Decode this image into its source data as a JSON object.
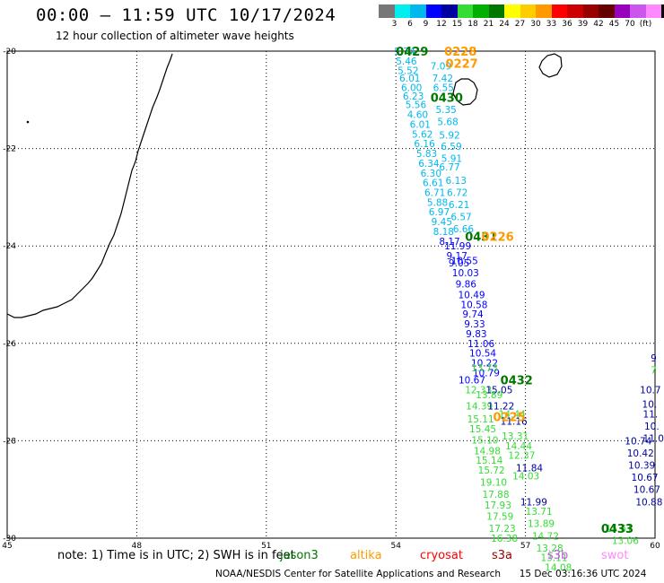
{
  "header": {
    "title": "00:00 – 11:59 UTC 10/17/2024",
    "subtitle": "12 hour collection of altimeter wave heights"
  },
  "colorbar": {
    "colors": [
      "#777777",
      "#00eeee",
      "#00b8ee",
      "#0000ff",
      "#0000a0",
      "#33dd33",
      "#00b000",
      "#007700",
      "#ffff00",
      "#ffcc00",
      "#ff9900",
      "#ff0000",
      "#cc0000",
      "#990000",
      "#660000",
      "#9900bb",
      "#cc55ee",
      "#ff88ff",
      "#000000"
    ],
    "labels": [
      "3",
      "6",
      "9",
      "12",
      "15",
      "18",
      "21",
      "24",
      "27",
      "30",
      "33",
      "36",
      "39",
      "42",
      "45",
      "70",
      "(ft)"
    ]
  },
  "axes": {
    "lon_ticks": [
      "45",
      "48",
      "51",
      "54",
      "57",
      "60"
    ],
    "lat_ticks": [
      "-20",
      "-22",
      "-24",
      "-26",
      "-28",
      "-30"
    ]
  },
  "tracks": [
    {
      "id": "0429",
      "color": "#00b8ee",
      "points": [
        [
          53.96,
          -20.0,
          "5.74"
        ],
        [
          54.0,
          -20.2,
          "5.46"
        ],
        [
          54.04,
          -20.4,
          "5.52"
        ],
        [
          54.08,
          -20.55,
          "6.01"
        ],
        [
          54.12,
          -20.75,
          "6.00"
        ],
        [
          54.16,
          -20.92,
          "6.23"
        ],
        [
          54.22,
          -21.1,
          "5.56"
        ],
        [
          54.26,
          -21.3,
          "4.60"
        ],
        [
          54.32,
          -21.5,
          "6.01"
        ],
        [
          54.37,
          -21.7,
          "5.62"
        ],
        [
          54.42,
          -21.9,
          "6.16"
        ],
        [
          54.47,
          -22.1,
          "5.83"
        ],
        [
          54.52,
          -22.3,
          "6.34"
        ],
        [
          54.57,
          -22.5,
          "6.30"
        ],
        [
          54.62,
          -22.7,
          "6.61"
        ],
        [
          54.66,
          -22.9,
          "6.71"
        ],
        [
          54.72,
          -23.1,
          "5.88"
        ],
        [
          54.76,
          -23.3,
          "6.97"
        ],
        [
          54.82,
          -23.5,
          "9.45"
        ],
        [
          54.86,
          -23.7,
          "8.18"
        ]
      ]
    },
    {
      "id": "0430",
      "color": "#00b8ee",
      "points": [
        [
          54.8,
          -20.3,
          "7.09"
        ],
        [
          54.84,
          -20.55,
          "7.42"
        ],
        [
          54.86,
          -20.75,
          "6.55"
        ],
        [
          54.92,
          -21.2,
          "5.35"
        ],
        [
          54.96,
          -21.45,
          "5.68"
        ],
        [
          55.0,
          -21.72,
          "5.92"
        ],
        [
          55.04,
          -21.95,
          "6.59"
        ],
        [
          55.05,
          -22.2,
          "5.91"
        ],
        [
          55.0,
          -22.38,
          "6.77"
        ],
        [
          55.15,
          -22.65,
          "6.13"
        ],
        [
          55.18,
          -22.9,
          "6.72"
        ],
        [
          55.22,
          -23.15,
          "6.21"
        ],
        [
          55.27,
          -23.4,
          "6.57"
        ],
        [
          55.32,
          -23.65,
          "6.66"
        ]
      ]
    },
    {
      "id": "0431",
      "color": "#0000ff",
      "points": [
        [
          55.0,
          -23.9,
          "8.17"
        ],
        [
          55.12,
          -24.0,
          "11.99"
        ],
        [
          55.17,
          -24.2,
          "9.17"
        ],
        [
          55.28,
          -24.3,
          "10.55"
        ],
        [
          55.22,
          -24.35,
          "9.05"
        ],
        [
          55.3,
          -24.55,
          "10.03"
        ],
        [
          55.38,
          -24.78,
          "9.86"
        ],
        [
          55.44,
          -25.0,
          "10.49"
        ],
        [
          55.5,
          -25.2,
          "10.58"
        ],
        [
          55.54,
          -25.4,
          "9.74"
        ],
        [
          55.58,
          -25.6,
          "9.33"
        ],
        [
          55.62,
          -25.8,
          "9.83"
        ],
        [
          55.66,
          -26.0,
          "11.06"
        ],
        [
          55.7,
          -26.2,
          "10.54"
        ],
        [
          55.74,
          -26.4,
          "10.22"
        ],
        [
          55.78,
          -26.6,
          "10.79"
        ],
        [
          55.45,
          -26.75,
          "10.67"
        ]
      ]
    },
    {
      "id": "0432",
      "color": "#33dd33",
      "points": [
        [
          55.74,
          -26.5,
          "13.73"
        ],
        [
          55.6,
          -26.95,
          "12.33"
        ],
        [
          55.85,
          -27.05,
          "13.89"
        ],
        [
          55.62,
          -27.28,
          "14.39"
        ],
        [
          55.65,
          -27.55,
          "15.11"
        ],
        [
          55.7,
          -27.75,
          "15.45"
        ],
        [
          55.75,
          -27.98,
          "15.10"
        ],
        [
          55.8,
          -28.2,
          "14.98"
        ],
        [
          55.85,
          -28.4,
          "15.14"
        ],
        [
          55.9,
          -28.6,
          "15.72"
        ],
        [
          55.95,
          -28.85,
          "19.10"
        ],
        [
          56.0,
          -29.1,
          "17.88"
        ],
        [
          56.05,
          -29.32,
          "17.93"
        ],
        [
          56.1,
          -29.55,
          "17.59"
        ],
        [
          56.15,
          -29.8,
          "17.23"
        ],
        [
          56.2,
          -30.0,
          "16.38"
        ]
      ]
    },
    {
      "id": "0432b",
      "color": "#0000a0",
      "points": [
        [
          56.08,
          -26.95,
          "15.05"
        ],
        [
          56.12,
          -27.28,
          "11.22"
        ],
        [
          56.42,
          -27.6,
          "11.16"
        ],
        [
          56.78,
          -28.55,
          "11.84"
        ],
        [
          56.88,
          -29.25,
          "11.99"
        ]
      ]
    },
    {
      "id": "0432c",
      "color": "#33dd33",
      "points": [
        [
          56.38,
          -27.45,
          "14.44"
        ],
        [
          56.45,
          -27.9,
          "13.31"
        ],
        [
          56.53,
          -28.1,
          "14.44"
        ],
        [
          56.6,
          -28.3,
          "12.37"
        ],
        [
          56.7,
          -28.72,
          "14.03"
        ],
        [
          57.0,
          -29.45,
          "13.71"
        ],
        [
          57.05,
          -29.7,
          "13.89"
        ],
        [
          57.15,
          -29.95,
          "14.72"
        ],
        [
          57.25,
          -30.2,
          "13.28"
        ],
        [
          57.35,
          -30.4,
          "13.11"
        ],
        [
          57.45,
          -30.6,
          "14.08"
        ]
      ]
    },
    {
      "id": "0433",
      "color": "#0000a0",
      "points": [
        [
          59.3,
          -28.0,
          "10.74"
        ],
        [
          59.35,
          -28.25,
          "10.42"
        ],
        [
          59.38,
          -28.5,
          "10.39"
        ],
        [
          59.45,
          -28.75,
          "10.67"
        ],
        [
          59.5,
          -29.0,
          "10.67"
        ],
        [
          59.55,
          -29.25,
          "10.88"
        ]
      ]
    }
  ],
  "track_labels": [
    {
      "text": "0429",
      "lon": 54.0,
      "lat": -20.0,
      "color": "#007700"
    },
    {
      "text": "0228",
      "lon": 55.12,
      "lat": -20.0,
      "color": "#ff9900"
    },
    {
      "text": "0227",
      "lon": 55.15,
      "lat": -20.25,
      "color": "#ff9900"
    },
    {
      "text": "0430",
      "lon": 54.8,
      "lat": -20.95,
      "color": "#007700"
    },
    {
      "text": "0431",
      "lon": 55.6,
      "lat": -23.8,
      "color": "#007700"
    },
    {
      "text": "0226",
      "lon": 55.98,
      "lat": -23.8,
      "color": "#ff9900"
    },
    {
      "text": "0432",
      "lon": 56.42,
      "lat": -26.75,
      "color": "#007700"
    },
    {
      "text": "0225",
      "lon": 56.25,
      "lat": -27.5,
      "color": "#ff9900"
    },
    {
      "text": "0433",
      "lon": 58.75,
      "lat": -29.8,
      "color": "#007700"
    }
  ],
  "edge_values": [
    {
      "text": "10.7",
      "lon": 59.65,
      "lat": -26.95,
      "color": "#0000a0"
    },
    {
      "text": "10.",
      "lon": 59.7,
      "lat": -27.25,
      "color": "#0000a0"
    },
    {
      "text": "11.",
      "lon": 59.72,
      "lat": -27.45,
      "color": "#0000a0"
    },
    {
      "text": "10.",
      "lon": 59.75,
      "lat": -27.7,
      "color": "#0000a0"
    },
    {
      "text": "11.0",
      "lon": 59.72,
      "lat": -27.95,
      "color": "#0000a0"
    },
    {
      "text": "9",
      "lon": 59.9,
      "lat": -26.3,
      "color": "#0000a0"
    },
    {
      "text": "7",
      "lon": 59.9,
      "lat": -26.55,
      "color": "#33dd33"
    },
    {
      "text": "15.61",
      "lon": 58.85,
      "lat": -29.8,
      "color": "#33dd33"
    },
    {
      "text": "13.06",
      "lon": 59.0,
      "lat": -30.05,
      "color": "#33dd33"
    }
  ],
  "footer": {
    "note1": "note: 1) Time is in UTC; 2) SWH is in feet",
    "missions": [
      {
        "name": "jason3",
        "color": "#007700"
      },
      {
        "name": "altika",
        "color": "#ff9900"
      },
      {
        "name": "cryosat",
        "color": "#ff0000"
      },
      {
        "name": "s3a",
        "color": "#990000"
      },
      {
        "name": "s3b",
        "color": "#cc55ee"
      },
      {
        "name": "swot",
        "color": "#ff88ff"
      }
    ],
    "credit": "NOAA/NESDIS Center for Satellite Applications and Research",
    "timestamp": "15 Dec 03:16:36 UTC 2024"
  }
}
